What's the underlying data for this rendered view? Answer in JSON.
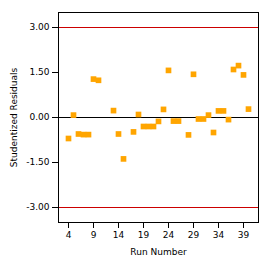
{
  "chart_data": {
    "type": "scatter",
    "x": [
      4,
      5,
      6,
      7,
      8,
      9,
      10,
      13,
      14,
      15,
      17,
      18,
      19,
      20,
      21,
      22,
      23,
      24,
      25,
      26,
      28,
      29,
      30,
      31,
      32,
      33,
      34,
      35,
      36,
      37,
      38,
      39,
      40
    ],
    "values": [
      -0.7,
      0.08,
      -0.55,
      -0.57,
      -0.57,
      1.28,
      1.24,
      0.23,
      -0.55,
      -1.38,
      -0.48,
      0.1,
      -0.3,
      -0.3,
      -0.3,
      -0.13,
      0.27,
      1.57,
      -0.12,
      -0.12,
      -0.58,
      1.44,
      -0.05,
      -0.05,
      0.08,
      -0.5,
      0.22,
      0.22,
      -0.07,
      1.6,
      1.73,
      1.42,
      0.28
    ],
    "color": "#FFA500",
    "marker": "square",
    "hlines": [
      {
        "value": 3.0,
        "color": "#cc0000"
      },
      {
        "value": -3.0,
        "color": "#cc0000"
      },
      {
        "value": 0,
        "color": "black"
      }
    ],
    "xlabel": "Run Number",
    "ylabel": "Studentized Residuals",
    "xlim": [
      2,
      42
    ],
    "ylim": [
      -3.5,
      3.5
    ],
    "xticks": [
      4,
      9,
      14,
      19,
      24,
      29,
      34,
      39
    ],
    "yticks": [
      {
        "value": -3.0,
        "label": "-3.00"
      },
      {
        "value": -1.5,
        "label": "-1.50"
      },
      {
        "value": 0,
        "label": "0.00"
      },
      {
        "value": 1.5,
        "label": "1.50"
      },
      {
        "value": 3.0,
        "label": "3.00"
      }
    ],
    "grid": false
  }
}
